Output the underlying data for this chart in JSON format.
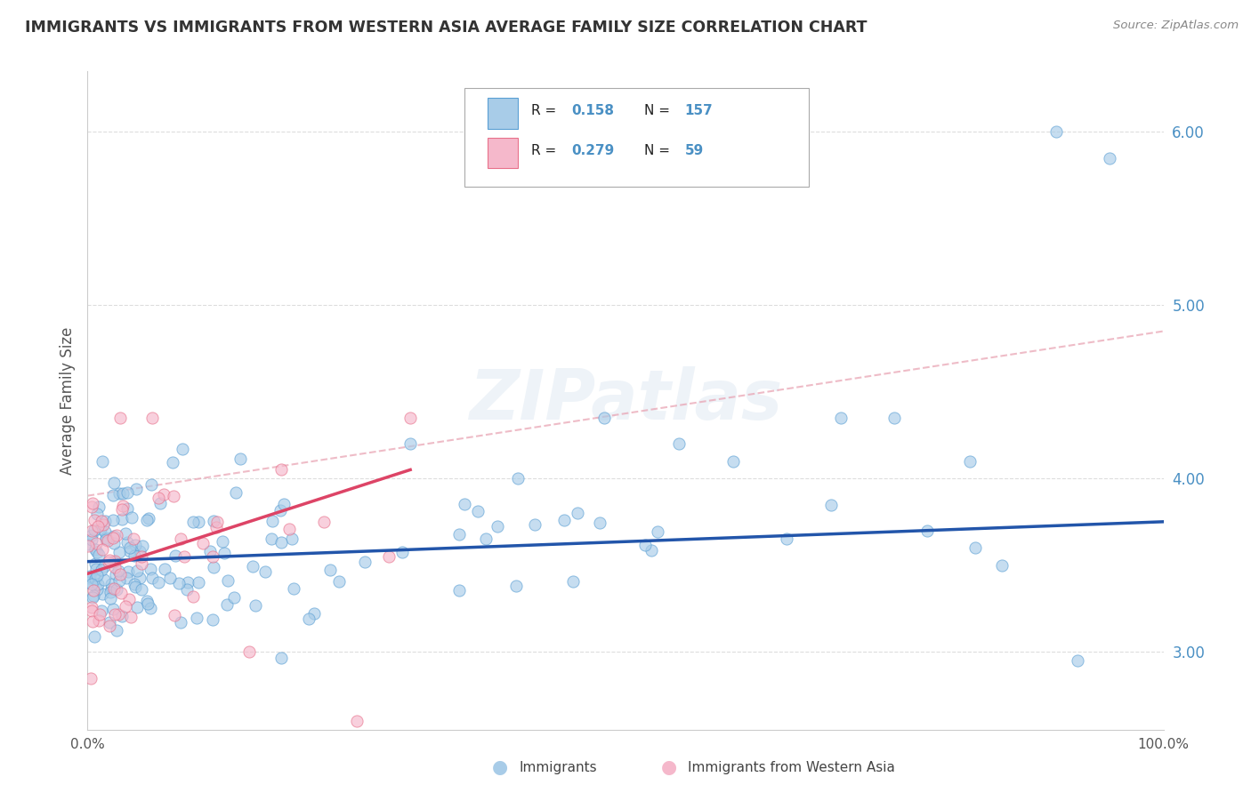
{
  "title": "IMMIGRANTS VS IMMIGRANTS FROM WESTERN ASIA AVERAGE FAMILY SIZE CORRELATION CHART",
  "source": "Source: ZipAtlas.com",
  "ylabel": "Average Family Size",
  "xlim": [
    0,
    100
  ],
  "ylim": [
    2.55,
    6.35
  ],
  "yticks": [
    3.0,
    4.0,
    5.0,
    6.0
  ],
  "xtick_labels": [
    "0.0%",
    "100.0%"
  ],
  "scatter1_color": "#a8cce8",
  "scatter1_edge": "#5a9fd4",
  "scatter2_color": "#f5b8cb",
  "scatter2_edge": "#e8708a",
  "regression1_color": "#2255aa",
  "regression2_color": "#dd4466",
  "regression1_x0": 0,
  "regression1_y0": 3.52,
  "regression1_x1": 100,
  "regression1_y1": 3.75,
  "regression2_x0": 0,
  "regression2_y0": 3.45,
  "regression2_x1": 30,
  "regression2_y1": 4.05,
  "dashed_x0": 0,
  "dashed_y0": 3.9,
  "dashed_x1": 100,
  "dashed_y1": 4.85,
  "watermark": "ZIPatlas",
  "background_color": "#ffffff",
  "grid_color": "#dddddd",
  "title_color": "#333333",
  "source_color": "#888888",
  "ylabel_color": "#555555",
  "ytick_label_color": "#4a90c4",
  "xtick_label_color": "#555555",
  "legend1_r": "0.158",
  "legend1_n": "157",
  "legend2_r": "0.279",
  "legend2_n": "59",
  "bottom_legend1": "Immigrants",
  "bottom_legend2": "Immigrants from Western Asia"
}
